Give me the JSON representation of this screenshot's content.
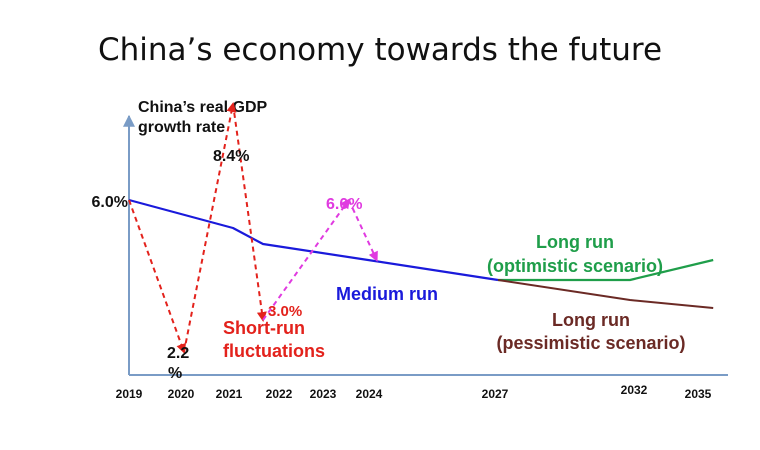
{
  "title": "China’s economy towards the future",
  "chart_data": {
    "type": "line",
    "title": "China’s economy towards the future",
    "ylabel": [
      "China’s real GDP",
      "growth rate"
    ],
    "xlabel": "",
    "x_ticks": [
      "2019",
      "2020",
      "2021",
      "2022",
      "2023",
      "2024",
      "2027",
      "2032",
      "2035"
    ],
    "grid": false,
    "colors": {
      "medium": "#1a1adb",
      "short": "#e3221c",
      "short_up": "#e03ae0",
      "optimistic": "#1f9e4a",
      "pessimistic": "#6b2a25"
    },
    "series": [
      {
        "name": "Medium run",
        "style": "solid",
        "points": [
          [
            2019,
            6.0
          ],
          [
            2021,
            5.3
          ],
          [
            2022,
            4.9
          ],
          [
            2024,
            4.5
          ],
          [
            2027,
            4.0
          ]
        ]
      },
      {
        "name": "Short-run fluctuations",
        "style": "dashed-arrow",
        "points": [
          [
            2019,
            6.0
          ],
          [
            2020,
            2.2
          ],
          [
            2021,
            8.4
          ],
          [
            2022,
            3.0
          ]
        ]
      },
      {
        "name": "",
        "style": "dashed-arrow",
        "points": [
          [
            2022,
            3.0
          ],
          [
            2023.6,
            6.0
          ],
          [
            2024.2,
            4.5
          ]
        ]
      },
      {
        "name": "Long run (optimistic scenario)",
        "style": "solid",
        "points": [
          [
            2027,
            4.0
          ],
          [
            2032.2,
            4.0
          ],
          [
            2035.6,
            4.5
          ]
        ]
      },
      {
        "name": "Long run (pessimistic scenario)",
        "style": "solid",
        "points": [
          [
            2027,
            4.0
          ],
          [
            2032.2,
            3.5
          ],
          [
            2035.6,
            3.3
          ]
        ]
      }
    ],
    "data_labels": {
      "start": "6.0%",
      "low_2020": [
        "2.2",
        "%"
      ],
      "high_2021": "8.4%",
      "low_2022": "3.0%",
      "peak_2023": "6.0%"
    },
    "annotations": {
      "medium_run": "Medium run",
      "short_run": [
        "Short-run",
        "fluctuations"
      ],
      "long_run_opt": [
        "Long run",
        "(optimistic scenario)"
      ],
      "long_run_pes": [
        "Long run",
        "(pessimistic scenario)"
      ]
    }
  }
}
